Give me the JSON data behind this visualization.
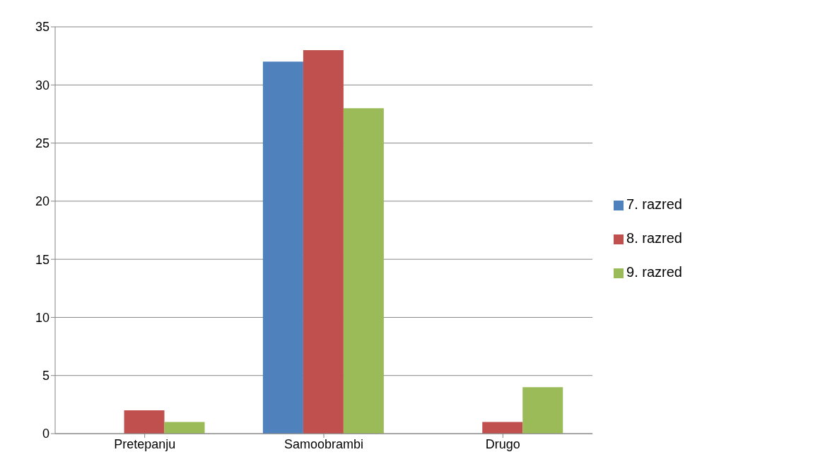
{
  "chart_data": {
    "type": "bar",
    "categories": [
      "Pretepanju",
      "Samoobrambi",
      "Drugo"
    ],
    "series": [
      {
        "name": "7. razred",
        "color": "#4f81bd",
        "values": [
          0,
          32,
          0
        ]
      },
      {
        "name": "8. razred",
        "color": "#c0504d",
        "values": [
          2,
          33,
          1
        ]
      },
      {
        "name": "9. razred",
        "color": "#9bbb59",
        "values": [
          1,
          28,
          4
        ]
      }
    ],
    "ylim": [
      0,
      35
    ],
    "yticks": [
      0,
      5,
      10,
      15,
      20,
      25,
      30,
      35
    ],
    "grid": "y",
    "legend": "right"
  }
}
